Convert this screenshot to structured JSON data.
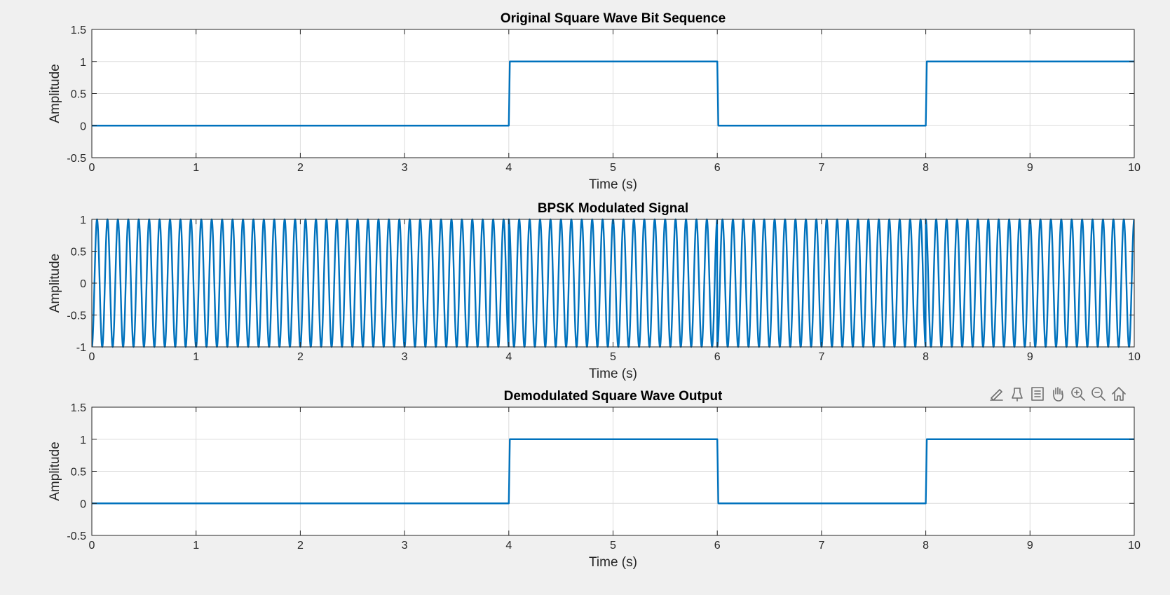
{
  "figure": {
    "background": "#f0f0f0",
    "toolbar": {
      "icons": [
        "brush-icon",
        "data-tips-icon",
        "legend-icon",
        "pan-icon",
        "zoom-in-icon",
        "zoom-out-icon",
        "home-icon"
      ]
    }
  },
  "chart_data": [
    {
      "type": "line",
      "title": "Original Square Wave Bit Sequence",
      "xlabel": "Time (s)",
      "ylabel": "Amplitude",
      "xlim": [
        0,
        10
      ],
      "ylim": [
        -0.5,
        1.5
      ],
      "xticks": [
        0,
        1,
        2,
        3,
        4,
        5,
        6,
        7,
        8,
        9,
        10
      ],
      "yticks": [
        -0.5,
        0,
        0.5,
        1,
        1.5
      ],
      "grid": true,
      "line_color": "#0072bd",
      "series": [
        {
          "x": [
            0,
            4,
            4.01,
            6,
            6.01,
            8,
            8.01,
            10
          ],
          "y": [
            0,
            0,
            1,
            1,
            0,
            0,
            1,
            1
          ]
        }
      ]
    },
    {
      "type": "line",
      "title": "BPSK Modulated Signal",
      "xlabel": "Time (s)",
      "ylabel": "Amplitude",
      "xlim": [
        0,
        10
      ],
      "ylim": [
        -1,
        1
      ],
      "xticks": [
        0,
        1,
        2,
        3,
        4,
        5,
        6,
        7,
        8,
        9,
        10
      ],
      "yticks": [
        -1,
        -0.5,
        0,
        0.5,
        1
      ],
      "grid": true,
      "line_color": "#0072bd",
      "carrier_frequency_hz": 10,
      "bits": [
        0,
        0,
        1,
        0,
        1
      ],
      "bit_duration_s": 2
    },
    {
      "type": "line",
      "title": "Demodulated Square Wave Output",
      "xlabel": "Time (s)",
      "ylabel": "Amplitude",
      "xlim": [
        0,
        10
      ],
      "ylim": [
        -0.5,
        1.5
      ],
      "xticks": [
        0,
        1,
        2,
        3,
        4,
        5,
        6,
        7,
        8,
        9,
        10
      ],
      "yticks": [
        -0.5,
        0,
        0.5,
        1,
        1.5
      ],
      "grid": true,
      "line_color": "#0072bd",
      "series": [
        {
          "x": [
            0,
            4,
            4.01,
            6,
            6.01,
            8,
            8.01,
            10
          ],
          "y": [
            0,
            0,
            1,
            1,
            0,
            0,
            1,
            1
          ]
        }
      ]
    }
  ]
}
